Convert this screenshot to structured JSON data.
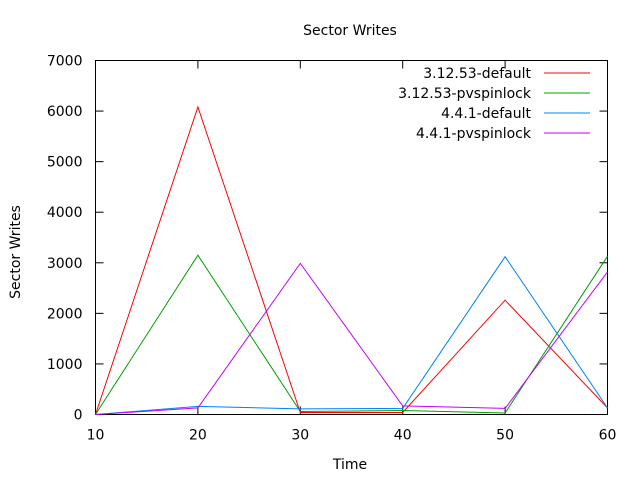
{
  "chart_data": {
    "type": "line",
    "title": "Sector Writes",
    "xlabel": "Time",
    "ylabel": "Sector Writes",
    "xlim": [
      10,
      60
    ],
    "ylim": [
      0,
      7000
    ],
    "x_ticks": [
      10,
      20,
      30,
      40,
      50,
      60
    ],
    "y_ticks": [
      0,
      1000,
      2000,
      3000,
      4000,
      5000,
      6000,
      7000
    ],
    "legend_position": "top-right",
    "grid": false,
    "x": [
      10,
      20,
      30,
      40,
      50,
      60
    ],
    "series": [
      {
        "name": "3.12.53-default",
        "color": "#ff0000",
        "values": [
          0,
          6080,
          40,
          40,
          2260,
          130
        ]
      },
      {
        "name": "3.12.53-pvspinlock",
        "color": "#00a000",
        "values": [
          0,
          3150,
          60,
          80,
          30,
          3130
        ]
      },
      {
        "name": "4.4.1-default",
        "color": "#0080ff",
        "values": [
          0,
          160,
          110,
          120,
          3120,
          130
        ]
      },
      {
        "name": "4.4.1-pvspinlock",
        "color": "#c000ff",
        "values": [
          0,
          130,
          2990,
          170,
          120,
          2820
        ]
      }
    ]
  }
}
